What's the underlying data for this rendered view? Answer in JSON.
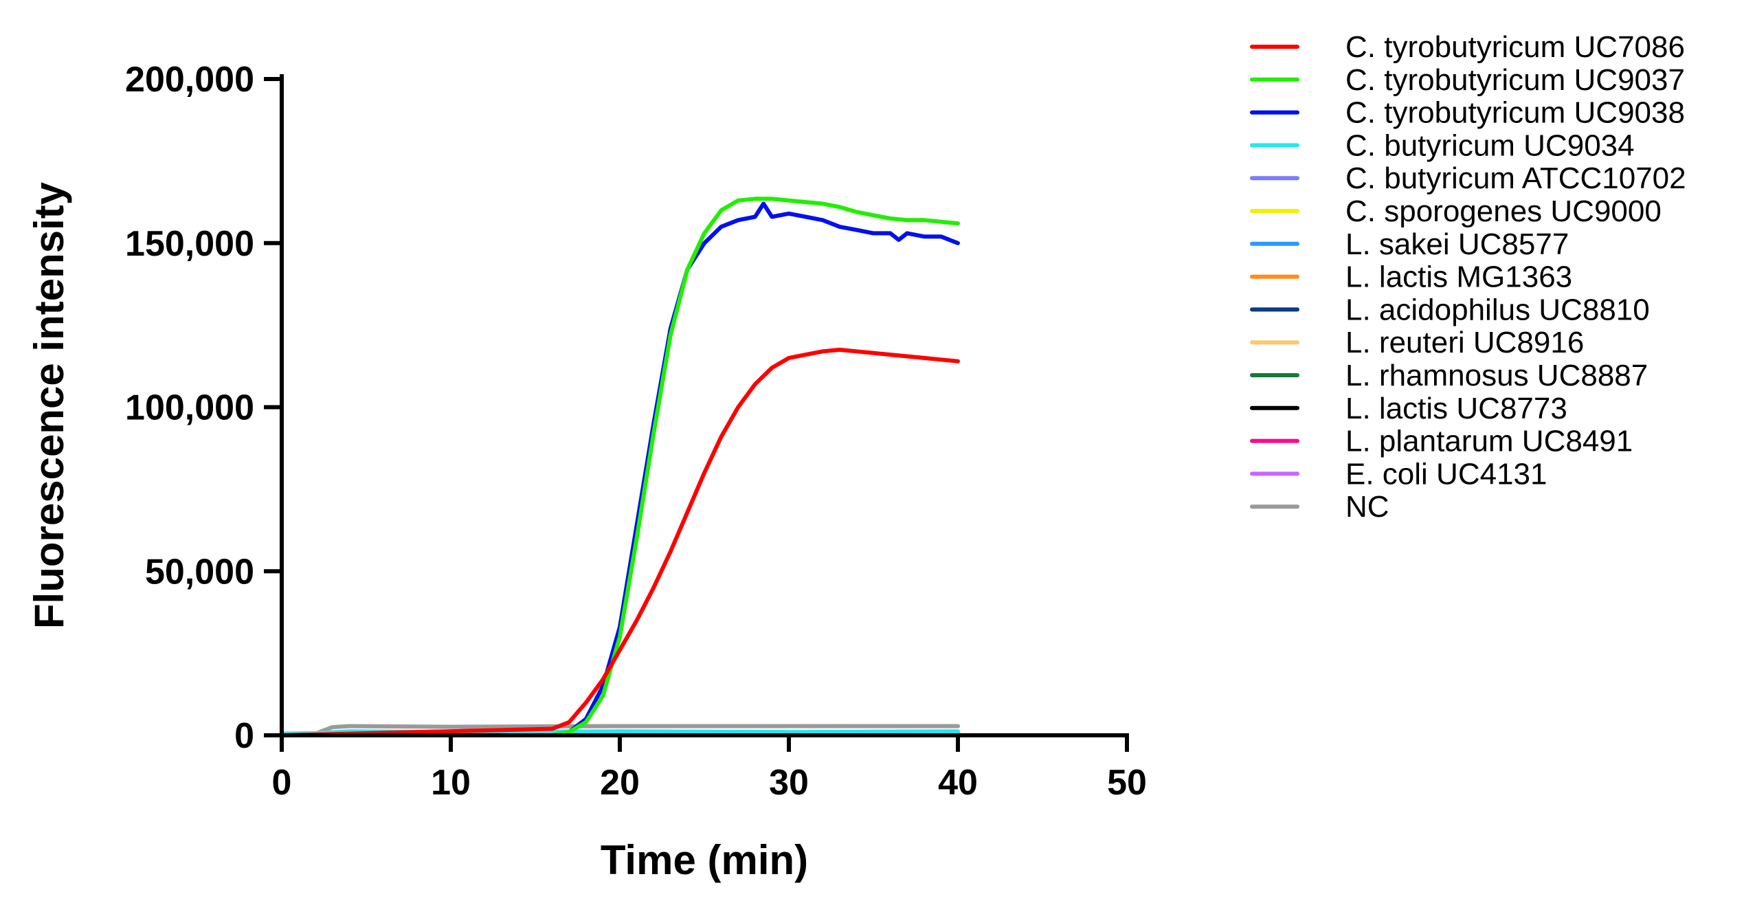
{
  "chart_data": {
    "type": "line",
    "title": "",
    "xlabel": "Time (min)",
    "ylabel": "Fluorescence intensity",
    "xlim": [
      0,
      50
    ],
    "ylim": [
      0,
      200000
    ],
    "x_ticks": [
      0,
      10,
      20,
      30,
      40,
      50
    ],
    "x_tick_labels": [
      "0",
      "10",
      "20",
      "30",
      "40",
      "50"
    ],
    "y_ticks": [
      0,
      50000,
      100000,
      150000,
      200000
    ],
    "y_tick_labels": [
      "0",
      "50,000",
      "100,000",
      "150,000",
      "200,000"
    ],
    "grid": false,
    "legend_position": "right",
    "series": [
      {
        "name": "C. tyrobutyricum UC7086",
        "color": "#ff0000",
        "x": [
          0,
          16,
          17,
          18,
          19,
          20,
          21,
          22,
          23,
          24,
          25,
          26,
          27,
          28,
          29,
          30,
          31,
          32,
          33,
          34,
          35,
          36,
          37,
          38,
          39,
          40
        ],
        "y": [
          0,
          2000,
          4000,
          10000,
          17000,
          26000,
          35000,
          45000,
          56000,
          68000,
          80000,
          91000,
          100000,
          107000,
          112000,
          115000,
          116000,
          117000,
          117500,
          117000,
          116500,
          116000,
          115500,
          115000,
          114500,
          114000
        ]
      },
      {
        "name": "C. tyrobutyricum UC9037",
        "color": "#22ee00",
        "x": [
          0,
          16,
          17,
          18,
          19,
          20,
          21,
          22,
          23,
          24,
          25,
          26,
          27,
          28,
          29,
          30,
          31,
          32,
          33,
          34,
          35,
          36,
          37,
          38,
          39,
          40
        ],
        "y": [
          0,
          0,
          1000,
          4000,
          12000,
          30000,
          60000,
          92000,
          122000,
          142000,
          153000,
          160000,
          163000,
          163500,
          163500,
          163000,
          162500,
          162000,
          161000,
          159500,
          158500,
          157500,
          157000,
          157000,
          156500,
          156000
        ]
      },
      {
        "name": "C. tyrobutyricum UC9038",
        "color": "#0010ee",
        "x": [
          0,
          16,
          17,
          18,
          19,
          20,
          21,
          22,
          23,
          24,
          25,
          26,
          27,
          28,
          28.5,
          29,
          30,
          31,
          32,
          33,
          34,
          35,
          36,
          36.5,
          37,
          38,
          39,
          40
        ],
        "y": [
          0,
          0,
          1000,
          5000,
          15000,
          33000,
          64000,
          95000,
          124000,
          142000,
          150000,
          155000,
          157000,
          158000,
          162000,
          158000,
          159000,
          158000,
          157000,
          155000,
          154000,
          153000,
          153000,
          151000,
          153000,
          152000,
          152000,
          150000
        ]
      },
      {
        "name": "C. butyricum UC9034",
        "color": "#22e8f0",
        "x": [
          0,
          2,
          4,
          10,
          20,
          30,
          40
        ],
        "y": [
          500,
          700,
          1200,
          1000,
          1200,
          1000,
          1200
        ]
      },
      {
        "name": "C. butyricum ATCC10702",
        "color": "#7a7aff",
        "x": [
          0,
          2,
          4,
          10,
          20,
          30,
          40
        ],
        "y": [
          0,
          0,
          300,
          300,
          400,
          400,
          400
        ]
      },
      {
        "name": "C. sporogenes UC9000",
        "color": "#f0f000",
        "x": [
          0,
          2,
          4,
          10,
          20,
          30,
          40
        ],
        "y": [
          0,
          100,
          500,
          500,
          500,
          500,
          500
        ]
      },
      {
        "name": "L. sakei UC8577",
        "color": "#2a9aff",
        "x": [
          0,
          2,
          4,
          10,
          20,
          30,
          40
        ],
        "y": [
          0,
          200,
          600,
          600,
          700,
          700,
          700
        ]
      },
      {
        "name": "L. lactis MG1363",
        "color": "#ff8c1a",
        "x": [
          0,
          2,
          4,
          10,
          20,
          30,
          40
        ],
        "y": [
          0,
          100,
          300,
          300,
          300,
          300,
          300
        ]
      },
      {
        "name": "L. acidophilus UC8810",
        "color": "#0a3a8a",
        "x": [
          0,
          2,
          4,
          10,
          20,
          30,
          40
        ],
        "y": [
          0,
          0,
          200,
          200,
          200,
          200,
          200
        ]
      },
      {
        "name": "L. reuteri UC8916",
        "color": "#ffc870",
        "x": [
          0,
          2,
          4,
          10,
          20,
          30,
          40
        ],
        "y": [
          0,
          100,
          400,
          400,
          400,
          400,
          400
        ]
      },
      {
        "name": "L. rhamnosus UC8887",
        "color": "#137a3a",
        "x": [
          0,
          2,
          4,
          10,
          20,
          30,
          40
        ],
        "y": [
          0,
          0,
          100,
          100,
          100,
          100,
          100
        ]
      },
      {
        "name": "L. lactis UC8773",
        "color": "#000000",
        "x": [
          0,
          2,
          4,
          10,
          20,
          30,
          40
        ],
        "y": [
          0,
          0,
          0,
          0,
          0,
          0,
          0
        ]
      },
      {
        "name": "L. plantarum UC8491",
        "color": "#ff0a8a",
        "x": [
          0,
          2,
          4,
          10,
          20,
          30,
          40
        ],
        "y": [
          0,
          0,
          100,
          100,
          100,
          100,
          100
        ]
      },
      {
        "name": "E. coli UC4131",
        "color": "#cc66ff",
        "x": [
          0,
          2,
          4,
          10,
          20,
          30,
          40
        ],
        "y": [
          0,
          100,
          300,
          300,
          300,
          300,
          300
        ]
      },
      {
        "name": "NC",
        "color": "#9a9a9a",
        "x": [
          0,
          2,
          3,
          4,
          10,
          20,
          30,
          40
        ],
        "y": [
          0,
          500,
          2500,
          2800,
          2600,
          2800,
          2800,
          2800
        ]
      }
    ]
  }
}
